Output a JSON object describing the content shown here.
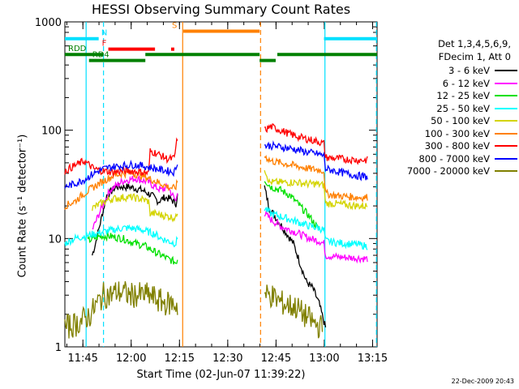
{
  "chart_data": {
    "type": "line",
    "title": "HESSI Observing Summary Count Rates",
    "xlabel": "Start Time (02-Jun-07 11:39:22)",
    "ylabel": "Count Rate (s⁻¹ detector⁻¹)",
    "yscale": "log",
    "ylim": [
      1,
      1000
    ],
    "xlim_minutes": [
      0,
      97
    ],
    "x_ticks": [
      {
        "label": "11:45",
        "t": 5.6
      },
      {
        "label": "12:00",
        "t": 20.6
      },
      {
        "label": "12:15",
        "t": 35.6
      },
      {
        "label": "12:30",
        "t": 50.6
      },
      {
        "label": "12:45",
        "t": 65.6
      },
      {
        "label": "13:00",
        "t": 80.6
      },
      {
        "label": "13:15",
        "t": 95.6
      }
    ],
    "y_ticks": [
      {
        "label": "1",
        "v": 1
      },
      {
        "label": "10",
        "v": 10
      },
      {
        "label": "100",
        "v": 100
      },
      {
        "label": "1000",
        "v": 1000
      }
    ],
    "legend_header": [
      "Det 1,3,4,5,6,9,",
      "FDecim 1, Att 0"
    ],
    "series": [
      {
        "name": "3 - 6 keV",
        "color": "#000000",
        "x": [
          8.5,
          9.5,
          11,
          13,
          16,
          20,
          24,
          27,
          29,
          31,
          33,
          34.5,
          35,
          62,
          63.5,
          66,
          69,
          71,
          73,
          75,
          77,
          79,
          81
        ],
        "y": [
          7,
          9,
          14,
          25,
          30,
          30,
          28,
          25,
          22,
          24,
          23,
          21,
          25,
          30,
          19,
          15,
          11,
          9,
          6,
          4,
          3.5,
          2.5,
          1.5
        ]
      },
      {
        "name": "6 - 12 keV",
        "color": "#ff00ff",
        "x": [
          8.5,
          11,
          14,
          18,
          22,
          26,
          28,
          30,
          32,
          34.5,
          35,
          62,
          64,
          67,
          70,
          73,
          76,
          79,
          80.5,
          81,
          84,
          87,
          91,
          94
        ],
        "y": [
          12,
          18,
          28,
          34,
          36,
          33,
          30,
          28,
          30,
          22,
          28,
          17,
          15,
          13,
          12,
          11,
          10,
          9.5,
          9,
          7,
          6.8,
          6.7,
          6.6,
          6.5
        ]
      },
      {
        "name": "12 - 25 keV",
        "color": "#00e000",
        "x": [
          7,
          9,
          11,
          14,
          18,
          22,
          25,
          26.5,
          28,
          30,
          32,
          34.5,
          35,
          62,
          64,
          67,
          70,
          73,
          76,
          79
        ],
        "y": [
          9.5,
          10,
          10.5,
          10.5,
          10,
          9,
          8.5,
          8,
          7.5,
          7,
          6.5,
          6,
          6.5,
          35,
          30,
          28,
          25,
          20,
          16,
          12
        ]
      },
      {
        "name": "25 - 50 keV",
        "color": "#00ffff",
        "x": [
          0,
          3,
          6,
          9,
          12,
          15,
          18,
          20,
          22,
          24,
          26,
          28,
          30,
          32,
          34.5,
          35,
          62,
          64,
          67,
          70,
          73,
          76,
          79,
          80.5,
          81,
          84,
          87,
          91,
          94
        ],
        "y": [
          9,
          10,
          10.5,
          11,
          11.5,
          12,
          12.5,
          12.5,
          12.3,
          12,
          11.5,
          11,
          10,
          9.5,
          9,
          10,
          19,
          17,
          16,
          15,
          14,
          13,
          12.5,
          12,
          9.5,
          9.2,
          9,
          8.8,
          8.5
        ]
      },
      {
        "name": "50 - 100 keV",
        "color": "#d4d400",
        "x": [
          8.5,
          11,
          14,
          18,
          21,
          24,
          26,
          26.5,
          28,
          30,
          32,
          34.5,
          35,
          62,
          63.5,
          66,
          69,
          72,
          75,
          78,
          80.5,
          81,
          84,
          87,
          91,
          94
        ],
        "y": [
          19,
          21,
          23,
          24,
          24,
          23,
          22,
          17,
          17,
          16.5,
          16,
          15.5,
          18,
          45,
          33,
          33,
          33,
          33,
          32,
          32,
          31,
          21,
          21,
          20.5,
          20,
          20
        ]
      },
      {
        "name": "100 - 300 keV",
        "color": "#ff8000",
        "x": [
          0,
          3,
          6,
          9,
          12,
          15,
          18,
          21,
          24,
          27,
          30,
          32,
          34,
          34.5,
          35,
          62,
          64,
          67,
          70,
          73,
          76,
          79,
          80.5,
          81,
          84,
          87,
          91,
          94
        ],
        "y": [
          20,
          22,
          26,
          30,
          34,
          38,
          40,
          40,
          38,
          35,
          32,
          30,
          29,
          30,
          33,
          58,
          52,
          50,
          48,
          46,
          44,
          43,
          42,
          26,
          25,
          24.5,
          24,
          24
        ]
      },
      {
        "name": "300 - 800 keV",
        "color": "#ff0000",
        "x": [
          0,
          3,
          6,
          9,
          12,
          15,
          18,
          21,
          24,
          26,
          26.5,
          28,
          30,
          32,
          34,
          34.5,
          35,
          62,
          64,
          67,
          70,
          73,
          76,
          79,
          80.5,
          81,
          84,
          87,
          91,
          94
        ],
        "y": [
          42,
          47,
          52,
          44,
          42,
          41,
          42,
          42,
          41,
          40,
          64,
          62,
          58,
          54,
          55,
          70,
          85,
          100,
          108,
          100,
          92,
          86,
          82,
          78,
          75,
          56,
          55,
          54,
          53,
          53
        ]
      },
      {
        "name": "800 - 7000 keV",
        "color": "#0000ff",
        "x": [
          0,
          3,
          6,
          9,
          12,
          15,
          18,
          21,
          24,
          27,
          30,
          32,
          34,
          34.5,
          35,
          62,
          64,
          67,
          70,
          73,
          76,
          79,
          80.5,
          81,
          84,
          87,
          91,
          94
        ],
        "y": [
          30,
          32,
          35,
          40,
          44,
          46,
          47,
          48,
          47,
          45,
          43,
          42,
          41,
          45,
          52,
          72,
          72,
          70,
          68,
          65,
          62,
          60,
          58,
          44,
          42,
          40,
          38,
          37
        ]
      },
      {
        "name": "7000 - 20000 keV",
        "color": "#808000",
        "x": [
          0,
          3,
          6,
          8,
          10,
          12,
          14,
          16,
          18,
          20,
          22,
          24,
          26,
          28,
          30,
          32,
          34,
          35,
          62,
          64,
          66,
          68,
          70,
          72,
          74,
          76,
          78,
          80
        ],
        "y": [
          1.5,
          1.6,
          1.8,
          2,
          2.5,
          3,
          3,
          3.2,
          3.2,
          3,
          3,
          3,
          3,
          2.8,
          2.6,
          2.5,
          2.5,
          2.4,
          3,
          3,
          2.7,
          2.5,
          2.4,
          2.3,
          2,
          1.8,
          1.6,
          1.5
        ]
      }
    ],
    "annotations": [
      {
        "label": "N",
        "color": "#00e0ff",
        "y": 700,
        "segments": [
          [
            0,
            10.5
          ],
          [
            80.5,
            97
          ]
        ]
      },
      {
        "label": "F",
        "color": "#ff0000",
        "y": 560,
        "segments": [
          [
            13.5,
            28
          ],
          [
            33,
            34
          ]
        ]
      },
      {
        "label": "S",
        "color": "#ff8000",
        "y": 820,
        "segments": [
          [
            36.8,
            60.5
          ]
        ]
      },
      {
        "label": "RDD",
        "color": "#008000",
        "y": 500,
        "segments": [
          [
            0,
            12
          ],
          [
            25,
            60.5
          ],
          [
            66,
            97
          ]
        ]
      },
      {
        "label": "RD4",
        "color": "#008000",
        "y": 440,
        "segments": [
          [
            7.5,
            25
          ],
          [
            60.5,
            65.5
          ]
        ]
      }
    ],
    "vertical_markers": [
      {
        "t": 6.6,
        "color": "#00e0ff",
        "style": "solid"
      },
      {
        "t": 12.0,
        "color": "#00e0ff",
        "style": "dashed"
      },
      {
        "t": 36.6,
        "color": "#ff8000",
        "style": "solid"
      },
      {
        "t": 60.8,
        "color": "#ff8000",
        "style": "dashed"
      },
      {
        "t": 80.8,
        "color": "#00e0ff",
        "style": "solid"
      },
      {
        "t": 96.8,
        "color": "#00e0ff",
        "style": "dashed"
      }
    ],
    "gap": [
      35.2,
      61.8
    ]
  },
  "timestamp": "22-Dec-2009 20:43"
}
